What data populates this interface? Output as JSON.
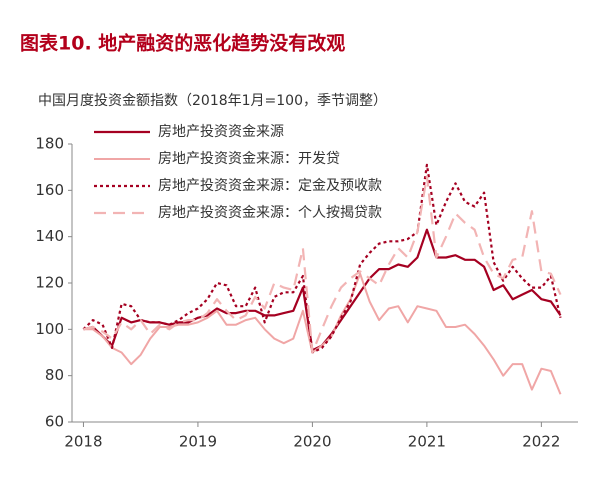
{
  "chart_data": {
    "type": "line",
    "title": "图表10.  地产融资的恶化趋势没有改观",
    "subtitle": "中国月度投资金额指数（2018年1月=100，季节调整）",
    "x": [
      2018,
      2018.083,
      2018.167,
      2018.25,
      2018.333,
      2018.417,
      2018.5,
      2018.583,
      2018.667,
      2018.75,
      2018.833,
      2018.917,
      2019,
      2019.083,
      2019.167,
      2019.25,
      2019.333,
      2019.417,
      2019.5,
      2019.583,
      2019.667,
      2019.75,
      2019.833,
      2019.917,
      2020,
      2020.083,
      2020.167,
      2020.25,
      2020.333,
      2020.417,
      2020.5,
      2020.583,
      2020.667,
      2020.75,
      2020.833,
      2020.917,
      2021,
      2021.083,
      2021.167,
      2021.25,
      2021.333,
      2021.417,
      2021.5,
      2021.583,
      2021.667,
      2021.75,
      2021.833,
      2021.917,
      2022,
      2022.083,
      2022.167
    ],
    "series": [
      {
        "name": "房地产投资资金来源",
        "color": "#a50021",
        "dash": "solid",
        "width": 2.2,
        "values": [
          100,
          101,
          97,
          93,
          105,
          103,
          104,
          103,
          103,
          102,
          103,
          103,
          105,
          106,
          109,
          107,
          107,
          108,
          108,
          106,
          106,
          107,
          108,
          118,
          91,
          93,
          98,
          104,
          110,
          116,
          122,
          126,
          126,
          128,
          127,
          131,
          143,
          131,
          131,
          132,
          130,
          130,
          127,
          117,
          119,
          113,
          115,
          117,
          113,
          112,
          106
        ]
      },
      {
        "name": "房地产投资资金来源：开发贷",
        "color": "#f0a6a6",
        "dash": "solid",
        "width": 2,
        "values": [
          100,
          100,
          97,
          92,
          90,
          85,
          89,
          96,
          101,
          101,
          102,
          102,
          103,
          105,
          108,
          102,
          102,
          104,
          105,
          100,
          96,
          94,
          96,
          108,
          90,
          93,
          97,
          106,
          113,
          124,
          112,
          104,
          109,
          110,
          103,
          110,
          109,
          108,
          101,
          101,
          102,
          98,
          93,
          87,
          80,
          85,
          85,
          74,
          83,
          82,
          72
        ]
      },
      {
        "name": "房地产投资资金来源：定金及预收款",
        "color": "#a50021",
        "dash": "dotted",
        "width": 2.2,
        "values": [
          100,
          104,
          102,
          92,
          111,
          110,
          104,
          103,
          103,
          102,
          104,
          107,
          109,
          113,
          120,
          119,
          110,
          110,
          118,
          103,
          114,
          116,
          116,
          123,
          90,
          92,
          97,
          105,
          112,
          128,
          133,
          137,
          138,
          138,
          139,
          142,
          171,
          145,
          155,
          163,
          155,
          153,
          159,
          129,
          121,
          127,
          122,
          118,
          118,
          123,
          105
        ]
      },
      {
        "name": "房地产投资资金来源：个人按揭贷款",
        "color": "#f2b4b4",
        "dash": "dashed",
        "width": 2.2,
        "values": [
          100,
          101,
          99,
          96,
          103,
          100,
          104,
          98,
          102,
          100,
          103,
          104,
          104,
          107,
          113,
          108,
          104,
          106,
          114,
          109,
          120,
          118,
          117,
          135,
          90,
          100,
          110,
          118,
          122,
          125,
          122,
          119,
          128,
          135,
          131,
          142,
          166,
          131,
          140,
          150,
          146,
          143,
          131,
          124,
          122,
          130,
          131,
          151,
          125,
          124,
          115
        ]
      }
    ],
    "xlim": [
      2017.9,
      2022.32
    ],
    "xticks": [
      2018,
      2019,
      2020,
      2021,
      2022
    ],
    "ylim": [
      60,
      180
    ],
    "yticks": [
      60,
      80,
      100,
      120,
      140,
      160,
      180
    ],
    "grid": false,
    "legend": "upper left"
  }
}
